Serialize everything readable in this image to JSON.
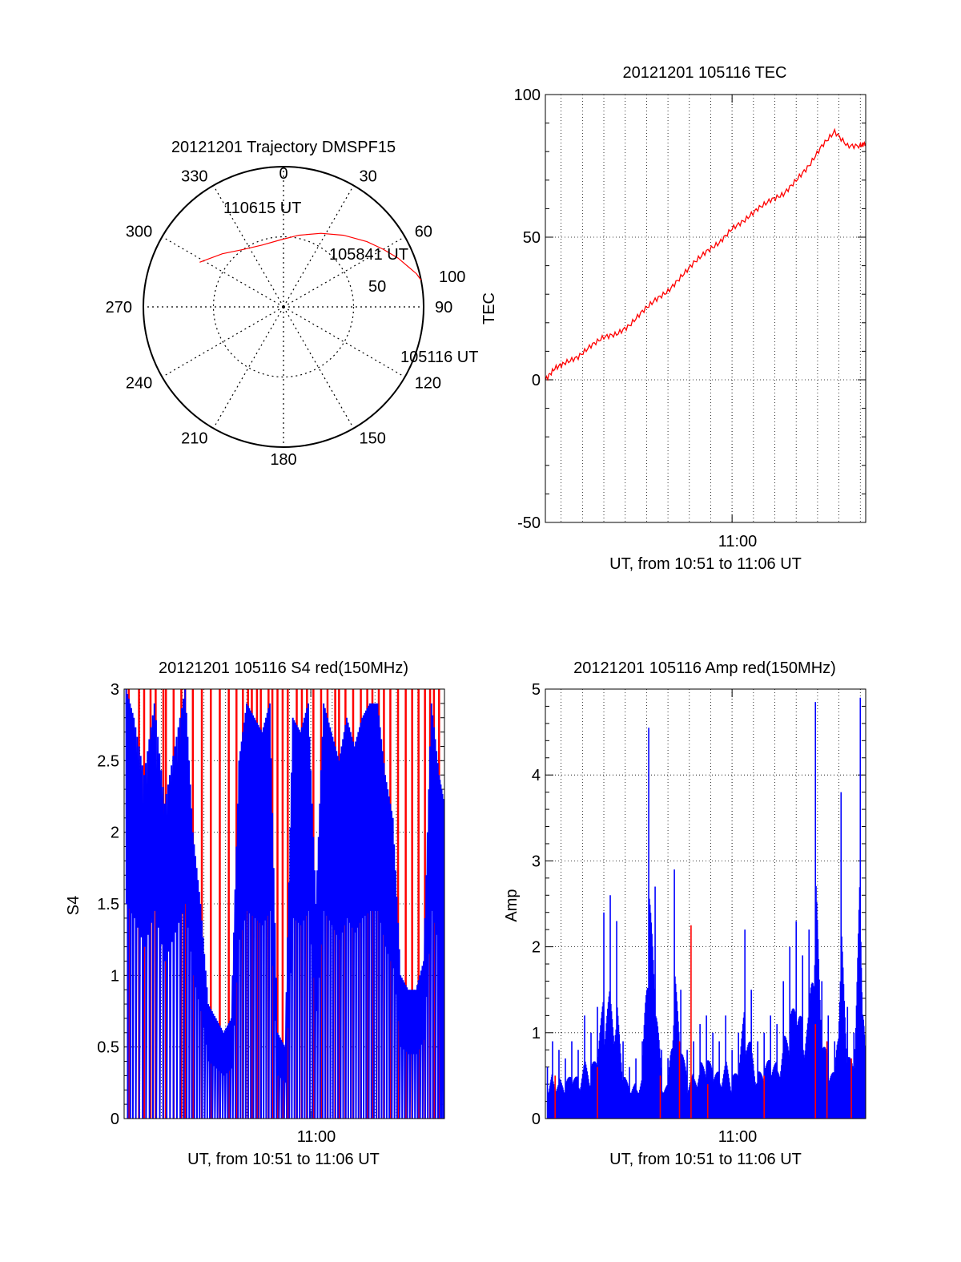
{
  "colors": {
    "red": "#ff0000",
    "blue": "#0000ff",
    "axis": "#000000",
    "grid": "#000000"
  },
  "chart_data": [
    {
      "id": "trajectory",
      "type": "polar",
      "title": "20121201 Trajectory DMSPF15",
      "azimuth_labels": [
        "0",
        "30",
        "60",
        "90",
        "120",
        "150",
        "180",
        "210",
        "240",
        "270",
        "300",
        "330"
      ],
      "ring_labels": [
        "50",
        "100"
      ],
      "elevation_range": [
        0,
        90
      ],
      "grid": true,
      "series": [
        {
          "color": "#ff0000",
          "points": [
            [
              298,
              29
            ],
            [
              311,
              38
            ],
            [
              325,
              45
            ],
            [
              341,
              48
            ],
            [
              357,
              47
            ],
            [
              12,
              43
            ],
            [
              27,
              37
            ],
            [
              40,
              30
            ],
            [
              52,
              22
            ],
            [
              60,
              16
            ],
            [
              67,
              10
            ],
            [
              72,
              6
            ],
            [
              76,
              2
            ],
            [
              79,
              0
            ]
          ]
        }
      ],
      "annotations": [
        "110615 UT",
        "105841 UT",
        "105116 UT"
      ]
    },
    {
      "id": "tec",
      "type": "line",
      "title": "20121201 105116 TEC",
      "xlabel": "UT, from 10:51 to 11:06 UT",
      "ylabel": "TEC",
      "xlim": [
        10.8544,
        11.1042
      ],
      "ylim": [
        -50,
        100
      ],
      "y_ticks": [
        "-50",
        "0",
        "50",
        "100"
      ],
      "x_ticks": [
        {
          "value": 11.0,
          "label": "11:00"
        }
      ],
      "grid": true,
      "series": [
        {
          "color": "#ff0000",
          "x": [
            10.8544,
            10.8617,
            10.87,
            10.88,
            10.89,
            10.9,
            10.91,
            10.92,
            10.93,
            10.94,
            10.95,
            10.96,
            10.97,
            10.98,
            10.99,
            11.0,
            11.01,
            11.02,
            11.03,
            11.04,
            11.05,
            11.06,
            11.07,
            11.08,
            11.09,
            11.1,
            11.1042
          ],
          "y": [
            0,
            4,
            6,
            8,
            12,
            15,
            16,
            19,
            24,
            28,
            31,
            36,
            41,
            45,
            48,
            53,
            56,
            60,
            63,
            65,
            70,
            75,
            82,
            87,
            82,
            82,
            83
          ]
        }
      ]
    },
    {
      "id": "s4",
      "type": "line",
      "title": "20121201 105116 S4 red(150MHz)",
      "xlabel": "UT, from 10:51 to 11:06 UT",
      "ylabel": "S4",
      "xlim": [
        10.8544,
        11.1042
      ],
      "ylim": [
        0,
        3
      ],
      "y_ticks": [
        "0",
        "0.5",
        "1",
        "1.5",
        "2",
        "2.5",
        "3"
      ],
      "x_ticks": [
        {
          "value": 11.0,
          "label": "11:00"
        }
      ],
      "grid": true,
      "series": [
        {
          "color": "#ff0000",
          "style": "vertical-spikes",
          "note_values": "spikes reach y=3",
          "x": [
            10.858,
            10.866,
            10.87,
            10.875,
            10.879,
            10.885,
            10.887,
            10.893,
            10.899,
            10.902,
            10.908,
            10.915,
            10.922,
            10.929,
            10.936,
            10.942,
            10.947,
            10.951,
            10.954,
            10.958,
            10.961,
            10.967,
            10.97,
            10.974,
            10.978,
            10.982,
            10.989,
            10.993,
            10.997,
            11.002,
            11.008,
            11.013,
            11.019,
            11.022,
            11.027,
            11.033,
            11.039,
            11.044,
            11.048,
            11.053,
            11.057,
            11.062,
            11.068,
            11.074,
            11.079,
            11.084,
            11.089,
            11.093,
            11.096,
            11.1
          ]
        },
        {
          "color": "#0000ff",
          "style": "dense-trace",
          "x": [
            10.856,
            10.862,
            10.87,
            10.878,
            10.886,
            10.894,
            10.902,
            10.908,
            10.914,
            10.92,
            10.926,
            10.932,
            10.938,
            10.944,
            10.95,
            10.956,
            10.962,
            10.968,
            10.974,
            10.98,
            10.986,
            10.992,
            10.998,
            11.004,
            11.01,
            11.016,
            11.022,
            11.028,
            11.034,
            11.04,
            11.046,
            11.052,
            11.058,
            11.064,
            11.07,
            11.076,
            11.082,
            11.088,
            11.094,
            11.1,
            11.104
          ],
          "y": [
            3.0,
            2.8,
            2.4,
            2.9,
            2.2,
            2.6,
            3.0,
            2.0,
            1.5,
            0.8,
            0.7,
            0.6,
            0.7,
            2.5,
            2.9,
            2.8,
            2.7,
            2.9,
            0.6,
            0.5,
            2.8,
            2.7,
            2.9,
            1.5,
            2.9,
            2.7,
            2.5,
            2.8,
            2.6,
            2.8,
            2.9,
            2.9,
            2.4,
            2.1,
            1.0,
            0.9,
            0.9,
            1.1,
            2.9,
            2.4,
            2.2
          ]
        }
      ]
    },
    {
      "id": "amp",
      "type": "line",
      "title": "20121201 105116 Amp red(150MHz)",
      "xlabel": "UT, from 10:51 to 11:06 UT",
      "ylabel": "Amp",
      "xlim": [
        10.8544,
        11.1042
      ],
      "ylim": [
        0,
        5
      ],
      "y_ticks": [
        "0",
        "1",
        "2",
        "3",
        "4",
        "5"
      ],
      "x_ticks": [
        {
          "value": 11.0,
          "label": "11:00"
        }
      ],
      "grid": true,
      "series": [
        {
          "color": "#0000ff",
          "style": "dense-spikes",
          "x": [
            10.856,
            10.86,
            10.865,
            10.87,
            10.875,
            10.88,
            10.885,
            10.89,
            10.895,
            10.9,
            10.905,
            10.91,
            10.915,
            10.92,
            10.925,
            10.93,
            10.935,
            10.94,
            10.945,
            10.95,
            10.955,
            10.96,
            10.965,
            10.97,
            10.975,
            10.98,
            10.985,
            10.99,
            10.995,
            11.0,
            11.005,
            11.01,
            11.015,
            11.02,
            11.025,
            11.03,
            11.035,
            11.04,
            11.045,
            11.05,
            11.055,
            11.06,
            11.065,
            11.07,
            11.075,
            11.08,
            11.085,
            11.09,
            11.095,
            11.1,
            11.104
          ],
          "y": [
            0.6,
            0.9,
            0.8,
            0.7,
            0.9,
            0.8,
            1.2,
            1.0,
            1.3,
            2.4,
            2.6,
            2.3,
            0.9,
            0.6,
            0.7,
            0.9,
            4.55,
            2.7,
            0.8,
            0.7,
            2.9,
            1.5,
            0.8,
            0.9,
            1.1,
            1.2,
            1.0,
            0.9,
            1.2,
            0.8,
            1.0,
            2.2,
            1.5,
            0.9,
            1.0,
            1.2,
            1.1,
            1.6,
            2.0,
            2.3,
            1.9,
            2.2,
            4.85,
            1.6,
            1.2,
            0.9,
            3.8,
            1.3,
            1.0,
            4.9,
            1.3
          ]
        },
        {
          "color": "#ff0000",
          "style": "spikes",
          "x": [
            10.862,
            10.895,
            10.944,
            10.959,
            10.968,
            10.981,
            11.025,
            11.065,
            11.074,
            11.093
          ],
          "y": [
            0.5,
            0.6,
            0.5,
            0.9,
            2.25,
            0.4,
            0.5,
            1.1,
            0.9,
            0.7
          ]
        }
      ]
    }
  ]
}
